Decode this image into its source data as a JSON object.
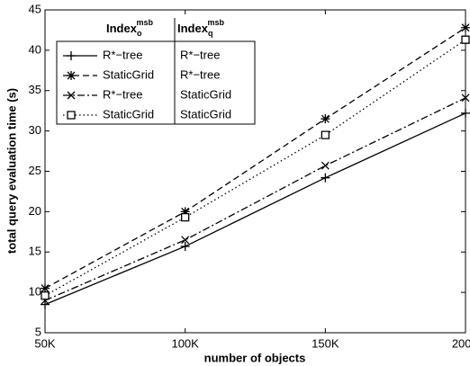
{
  "chart_data": {
    "type": "line",
    "xlabel": "number of objects",
    "ylabel": "total query evaluation time (s)",
    "legend_headers": [
      {
        "base": "Index",
        "sub": "o",
        "sup": "msb"
      },
      {
        "base": "Index",
        "sub": "q",
        "sup": "msb"
      }
    ],
    "x": [
      50000,
      100000,
      150000,
      200000
    ],
    "xlim": [
      50000,
      200000
    ],
    "xticks": [
      {
        "value": 50000,
        "label": "50K"
      },
      {
        "value": 100000,
        "label": "100K"
      },
      {
        "value": 150000,
        "label": "150K"
      },
      {
        "value": 200000,
        "label": "200K"
      }
    ],
    "ylim": [
      5,
      45
    ],
    "yticks": [
      5,
      10,
      15,
      20,
      25,
      30,
      35,
      40,
      45
    ],
    "series": [
      {
        "name": "R*−tree",
        "index_q": "R*−tree",
        "color": "#000000",
        "dash": "solid",
        "marker": "plus",
        "values": [
          8.5,
          15.7,
          24.2,
          32.2
        ]
      },
      {
        "name": "StaticGrid",
        "index_q": "R*−tree",
        "color": "#000000",
        "dash": "dashed",
        "marker": "star",
        "values": [
          10.5,
          20.0,
          31.5,
          42.8
        ]
      },
      {
        "name": "R*−tree",
        "index_q": "StaticGrid",
        "color": "#000000",
        "dash": "dashdot",
        "marker": "cross",
        "values": [
          9.0,
          16.5,
          25.7,
          34.1
        ]
      },
      {
        "name": "StaticGrid",
        "index_q": "StaticGrid",
        "color": "#000000",
        "dash": "dotted",
        "marker": "square",
        "values": [
          9.6,
          19.3,
          29.5,
          41.3
        ]
      }
    ]
  }
}
